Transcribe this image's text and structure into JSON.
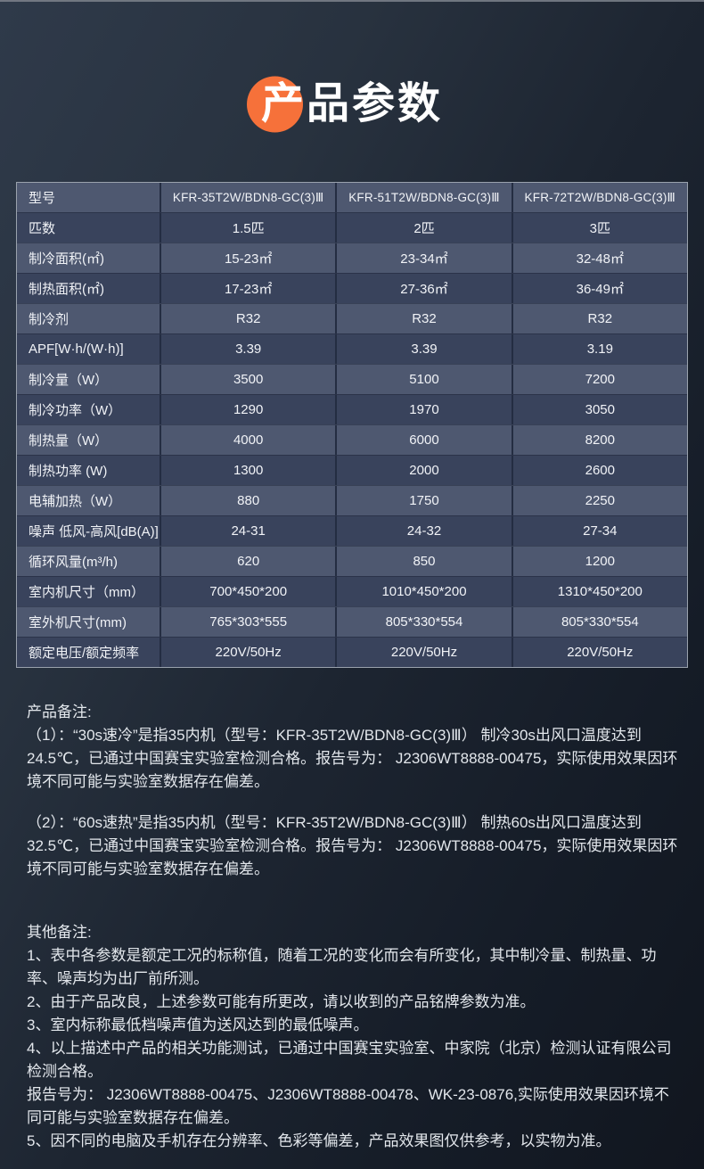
{
  "page": {
    "title": "产品参数",
    "accent_color": "#F6713A",
    "row_light_color": "#4e5870",
    "row_dark_color": "#39435c"
  },
  "table": {
    "header": {
      "label": "型号",
      "values": [
        "KFR-35T2W/BDN8-GC(3)Ⅲ",
        "KFR-51T2W/BDN8-GC(3)Ⅲ",
        "KFR-72T2W/BDN8-GC(3)Ⅲ"
      ]
    },
    "rows": [
      {
        "label": "匹数",
        "values": [
          "1.5匹",
          "2匹",
          "3匹"
        ]
      },
      {
        "label": "制冷面积(㎡)",
        "values": [
          "15-23㎡",
          "23-34㎡",
          "32-48㎡"
        ]
      },
      {
        "label": "制热面积(㎡)",
        "values": [
          "17-23㎡",
          "27-36㎡",
          "36-49㎡"
        ]
      },
      {
        "label": "制冷剂",
        "values": [
          "R32",
          "R32",
          "R32"
        ]
      },
      {
        "label": "APF[W·h/(W·h)]",
        "values": [
          "3.39",
          "3.39",
          "3.19"
        ]
      },
      {
        "label": "制冷量（W）",
        "values": [
          "3500",
          "5100",
          "7200"
        ]
      },
      {
        "label": "制冷功率（W）",
        "values": [
          "1290",
          "1970",
          "3050"
        ]
      },
      {
        "label": "制热量（W）",
        "values": [
          "4000",
          "6000",
          "8200"
        ]
      },
      {
        "label": "制热功率 (W)",
        "values": [
          "1300",
          "2000",
          "2600"
        ]
      },
      {
        "label": "电辅加热（W）",
        "values": [
          "880",
          "1750",
          "2250"
        ]
      },
      {
        "label": "噪声 低风-高风[dB(A)]",
        "values": [
          "24-31",
          "24-32",
          "27-34"
        ]
      },
      {
        "label": "循环风量(m³/h)",
        "values": [
          "620",
          "850",
          "1200"
        ]
      },
      {
        "label": "室内机尺寸（mm）",
        "values": [
          "700*450*200",
          "1010*450*200",
          "1310*450*200"
        ]
      },
      {
        "label": "室外机尺寸(mm)",
        "values": [
          "765*303*555",
          "805*330*554",
          "805*330*554"
        ]
      },
      {
        "label": "额定电压/额定频率",
        "values": [
          "220V/50Hz",
          "220V/50Hz",
          "220V/50Hz"
        ]
      }
    ]
  },
  "notes": {
    "product_title": "产品备注:",
    "product_items": [
      "（1）：“30s速冷”是指35内机（型号：KFR-35T2W/BDN8-GC(3)Ⅲ） 制冷30s出风口温度达到 24.5℃，已通过中国赛宝实验室检测合格。报告号为： J2306WT8888-00475，实际使用效果因环境不同可能与实验室数据存在偏差。",
      "（2）：“60s速热”是指35内机（型号：KFR-35T2W/BDN8-GC(3)Ⅲ） 制热60s出风口温度达到 32.5℃，已通过中国赛宝实验室检测合格。报告号为： J2306WT8888-00475，实际使用效果因环境不同可能与实验室数据存在偏差。"
    ],
    "other_title": "其他备注:",
    "other_items": [
      "1、表中各参数是额定工况的标称值，随着工况的变化而会有所变化，其中制冷量、制热量、功率、噪声均为出厂前所测。",
      "2、由于产品改良，上述参数可能有所更改，请以收到的产品铭牌参数为准。",
      "3、室内标称最低档噪声值为送风达到的最低噪声。",
      "4、以上描述中产品的相关功能测试，已通过中国赛宝实验室、中家院（北京）检测认证有限公司检测合格。",
      "报告号为： J2306WT8888-00475、J2306WT8888-00478、WK-23-0876,实际使用效果因环境不同可能与实验室数据存在偏差。",
      "5、因不同的电脑及手机存在分辨率、色彩等偏差，产品效果图仅供参考，以实物为准。"
    ]
  }
}
